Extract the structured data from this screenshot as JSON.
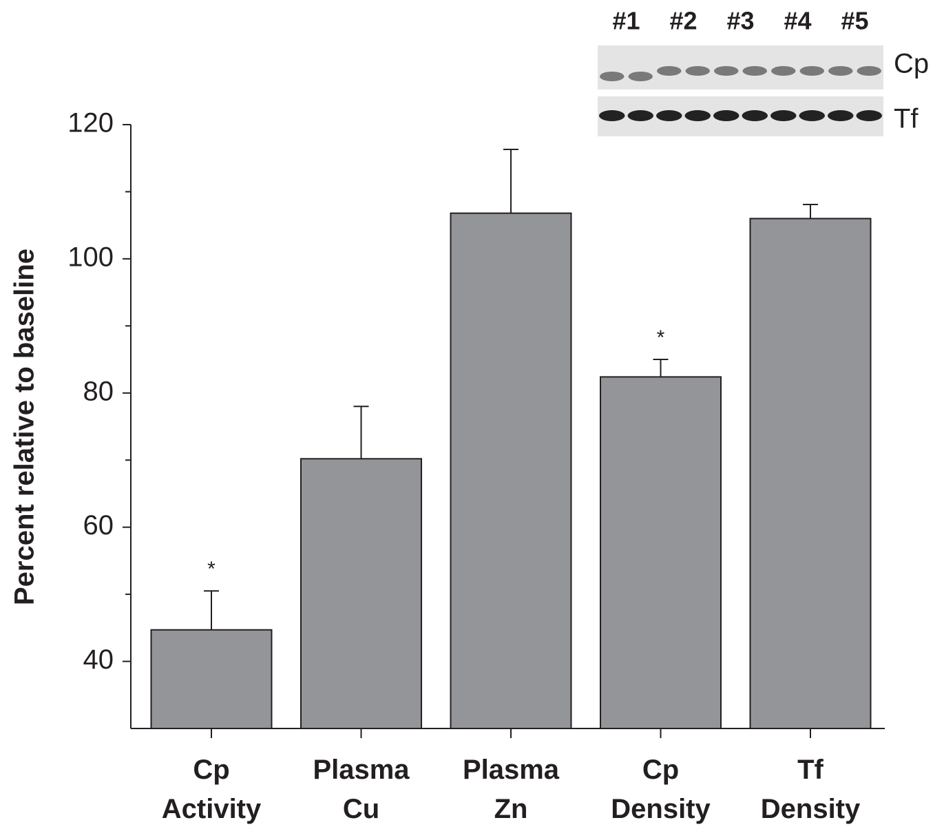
{
  "chart_data": {
    "type": "bar",
    "y_label": "Percent relative to baseline",
    "categories": [
      "Cp\nActivity",
      "Plasma\nCu",
      "Plasma\nZn",
      "Cp\nDensity",
      "Tf\nDensity"
    ],
    "values": [
      44.7,
      70.2,
      106.8,
      82.4,
      106.0
    ],
    "errors": [
      5.8,
      7.8,
      9.5,
      2.6,
      2.1
    ],
    "significance": [
      "*",
      null,
      null,
      "*",
      null
    ],
    "color": "#939598",
    "ylim": [
      30,
      120
    ],
    "yticks": [
      40,
      60,
      80,
      100,
      120
    ],
    "minor_yticks": [
      50,
      70,
      90,
      110
    ],
    "inset": {
      "lanes": [
        "#1",
        "#2",
        "#3",
        "#4",
        "#5"
      ],
      "rows": [
        "Cp",
        "Tf"
      ]
    }
  }
}
